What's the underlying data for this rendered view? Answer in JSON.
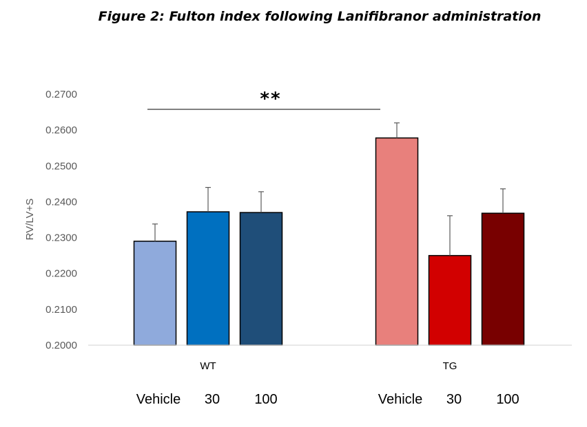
{
  "chart_data": {
    "type": "bar",
    "title": "Figure 2: Fulton index following Lanifibranor administration",
    "xlabel": "",
    "ylabel": "RV/LV+S",
    "ylim": [
      0.2,
      0.27
    ],
    "yticks": [
      "0.2000",
      "0.2100",
      "0.2200",
      "0.2300",
      "0.2400",
      "0.2500",
      "0.2600",
      "0.2700"
    ],
    "groups": [
      {
        "name": "WT",
        "bars": [
          {
            "label": "Vehicle",
            "value": 0.229,
            "error": 0.0048,
            "color": "#8FAADC"
          },
          {
            "label": "30",
            "value": 0.2372,
            "error": 0.0068,
            "color": "#0070C0"
          },
          {
            "label": "100",
            "value": 0.237,
            "error": 0.0058,
            "color": "#1F4E79"
          }
        ]
      },
      {
        "name": "TG",
        "bars": [
          {
            "label": "Vehicle",
            "value": 0.2578,
            "error": 0.0042,
            "color": "#E8807C"
          },
          {
            "label": "30",
            "value": 0.225,
            "error": 0.0111,
            "color": "#D20000"
          },
          {
            "label": "100",
            "value": 0.2368,
            "error": 0.0068,
            "color": "#780000"
          }
        ]
      }
    ],
    "annotation": {
      "text": "**",
      "from_group": "WT",
      "to_group": "TG"
    },
    "grid": false,
    "legend": "none"
  },
  "colors": {
    "axis": "#D9D9D9",
    "tick_text": "#595959",
    "bar_outline": "#000000",
    "error_bar": "#595959"
  }
}
